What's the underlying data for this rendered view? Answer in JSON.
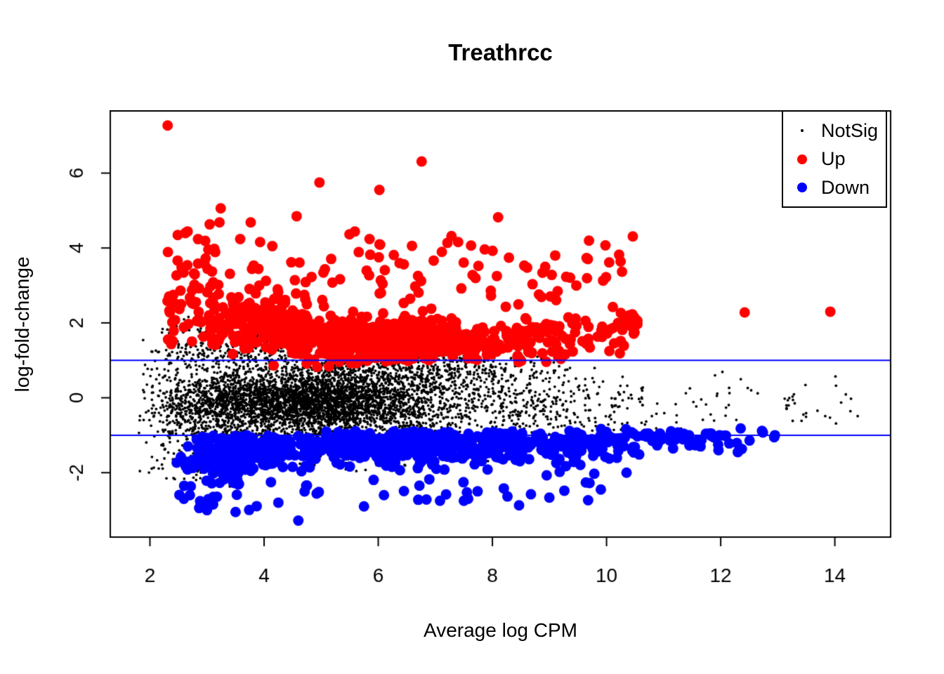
{
  "chart_data": {
    "type": "scatter",
    "title": "Treathrcc",
    "xlabel": "Average log CPM",
    "ylabel": "log-fold-change",
    "xlim": [
      1.305,
      14.977
    ],
    "ylim": [
      -3.72,
      7.66
    ],
    "xticks": [
      2,
      4,
      6,
      8,
      10,
      12,
      14
    ],
    "yticks": [
      -2,
      0,
      2,
      4,
      6
    ],
    "grid": false,
    "axis_color": "#000000",
    "background": "#ffffff",
    "hlines": {
      "values": [
        1,
        -1
      ],
      "color": "#0000ff",
      "width": 2
    },
    "legend": {
      "position": "top-right",
      "entries": [
        {
          "label": "NotSig",
          "color": "#000000",
          "marker_radius": 2.2
        },
        {
          "label": "Up",
          "color": "#ff0000",
          "marker_radius": 7
        },
        {
          "label": "Down",
          "color": "#0000ff",
          "marker_radius": 7
        }
      ]
    },
    "series": [
      {
        "name": "NotSig",
        "color": "#000000",
        "point_radius": 1.9,
        "zorder": 1,
        "seed": 11,
        "blobs": [
          {
            "n": 2400,
            "mx": 4.7,
            "sx": 1.05,
            "my": -0.08,
            "sy": 0.4,
            "cx": [
              2.2,
              8.2
            ],
            "cy": [
              -1.02,
              1.0
            ]
          },
          {
            "n": 1600,
            "mx": 5.4,
            "sx": 1.6,
            "my": -0.15,
            "sy": 0.62,
            "cx": [
              1.95,
              9.6
            ],
            "cy": [
              -1.55,
              1.15
            ]
          },
          {
            "n": 600,
            "mx": 3.0,
            "sx": 0.55,
            "my": -0.35,
            "sy": 0.95,
            "cx": [
              1.8,
              4.2
            ],
            "cy": [
              -2.55,
              2.0
            ]
          },
          {
            "n": 280,
            "mx": 3.7,
            "sx": 0.95,
            "my": 1.3,
            "sy": 0.38,
            "cx": [
              2.1,
              5.6
            ],
            "cy": [
              0.95,
              2.25
            ]
          },
          {
            "n": 400,
            "mx": 6.4,
            "sx": 1.3,
            "my": 0.75,
            "sy": 0.3,
            "cx": [
              3.5,
              9.5
            ],
            "cy": [
              0.4,
              1.15
            ]
          },
          {
            "n": 300,
            "mx": 8.7,
            "sx": 1.0,
            "my": -0.25,
            "sy": 0.55,
            "cx": [
              7.0,
              11.5
            ],
            "cy": [
              -1.35,
              0.95
            ]
          },
          {
            "n": 80,
            "ux": [
              9.5,
              14.55
            ],
            "my": -0.15,
            "sy": 0.45,
            "cy": [
              -1.15,
              0.8
            ]
          },
          {
            "n": 250,
            "mx": 5.3,
            "sx": 1.6,
            "my": -1.25,
            "sy": 0.3,
            "cx": [
              2.2,
              9.2
            ],
            "cy": [
              -2.0,
              -0.95
            ]
          }
        ],
        "outliers": [
          [
            14.4,
            -0.49
          ],
          [
            12.03,
            0.69
          ],
          [
            11.9,
            0.6
          ],
          [
            1.82,
            -0.6
          ]
        ]
      },
      {
        "name": "Down",
        "color": "#0000ff",
        "point_radius": 7.5,
        "zorder": 2,
        "seed": 33,
        "blobs": [
          {
            "n": 55,
            "ux": [
              2.45,
              3.6
            ],
            "my": -2.0,
            "sy": 0.5,
            "cy": [
              -3.05,
              -1.25
            ]
          },
          {
            "n": 230,
            "mx": 3.7,
            "sx": 0.55,
            "my": -1.4,
            "sy": 0.3,
            "cx": [
              2.8,
              4.8
            ],
            "cy": [
              -2.1,
              -1.0
            ]
          },
          {
            "n": 380,
            "mx": 6.5,
            "sx": 1.15,
            "my": -1.25,
            "sy": 0.25,
            "cx": [
              4.6,
              9.2
            ],
            "cy": [
              -2.0,
              -0.88
            ]
          },
          {
            "n": 120,
            "mx": 8.9,
            "sx": 1.0,
            "my": -1.2,
            "sy": 0.3,
            "cx": [
              7.2,
              10.6
            ],
            "cy": [
              -2.1,
              -0.88
            ]
          },
          {
            "n": 75,
            "mx": 11.0,
            "sx": 0.95,
            "my": -1.1,
            "sy": 0.18,
            "cx": [
              9.6,
              13.0
            ],
            "cy": [
              -1.55,
              -0.8
            ]
          },
          {
            "n": 30,
            "ux": [
              3.3,
              9.8
            ],
            "my": -2.45,
            "sy": 0.3,
            "cy": [
              -3.3,
              -2.0
            ]
          }
        ],
        "outliers": [
          [
            4.6,
            -3.28
          ],
          [
            3.5,
            -3.05
          ],
          [
            3.0,
            -3.0
          ],
          [
            2.95,
            -2.9
          ],
          [
            5.75,
            -2.9
          ],
          [
            4.25,
            -2.8
          ],
          [
            7.5,
            -2.75
          ],
          [
            2.7,
            -2.6
          ],
          [
            6.1,
            -2.6
          ],
          [
            9.9,
            -2.45
          ],
          [
            8.2,
            -2.42
          ],
          [
            2.6,
            -2.35
          ],
          [
            10.35,
            -2.0
          ],
          [
            12.95,
            -1.0
          ],
          [
            12.3,
            -1.45
          ],
          [
            12.35,
            -0.82
          ],
          [
            11.74,
            -0.96
          ],
          [
            11.98,
            -1.0
          ]
        ]
      },
      {
        "name": "Up",
        "color": "#ff0000",
        "point_radius": 7.5,
        "zorder": 3,
        "seed": 22,
        "blobs": [
          {
            "n": 55,
            "ux": [
              2.3,
              3.2
            ],
            "my": 2.7,
            "sy": 0.85,
            "cy": [
              1.4,
              4.6
            ]
          },
          {
            "n": 180,
            "mx": 3.9,
            "sx": 0.55,
            "my": 2.0,
            "sy": 0.5,
            "cx": [
              3.0,
              5.2
            ],
            "cy": [
              1.15,
              3.7
            ]
          },
          {
            "n": 360,
            "mx": 5.7,
            "sx": 0.95,
            "my": 1.55,
            "sy": 0.33,
            "cx": [
              4.1,
              8.0
            ],
            "cy": [
              0.82,
              2.9
            ]
          },
          {
            "n": 230,
            "mx": 7.1,
            "sx": 1.2,
            "my": 1.45,
            "sy": 0.3,
            "cx": [
              5.6,
              9.6
            ],
            "cy": [
              0.95,
              2.7
            ]
          },
          {
            "n": 80,
            "mx": 9.4,
            "sx": 0.85,
            "my": 1.6,
            "sy": 0.42,
            "cx": [
              8.2,
              10.6
            ],
            "cy": [
              1.02,
              3.0
            ]
          },
          {
            "n": 80,
            "ux": [
              2.9,
              10.3
            ],
            "my": 3.35,
            "sy": 0.6,
            "cy": [
              2.45,
              5.2
            ]
          }
        ],
        "outliers": [
          [
            2.31,
            7.27
          ],
          [
            6.76,
            6.31
          ],
          [
            4.97,
            5.75
          ],
          [
            6.02,
            5.55
          ],
          [
            3.24,
            5.06
          ],
          [
            4.57,
            4.85
          ],
          [
            5.59,
            4.44
          ],
          [
            3.93,
            4.16
          ],
          [
            7.4,
            4.16
          ],
          [
            8.1,
            4.82
          ],
          [
            9.98,
            4.07
          ],
          [
            2.62,
            4.4
          ],
          [
            10.46,
            4.31
          ],
          [
            10.22,
            3.82
          ],
          [
            9.65,
            3.73
          ],
          [
            9.94,
            3.13
          ],
          [
            9.1,
            3.8
          ],
          [
            10.45,
            2.23
          ],
          [
            10.54,
            2.06
          ],
          [
            12.42,
            2.28
          ],
          [
            13.92,
            2.3
          ]
        ]
      }
    ]
  }
}
